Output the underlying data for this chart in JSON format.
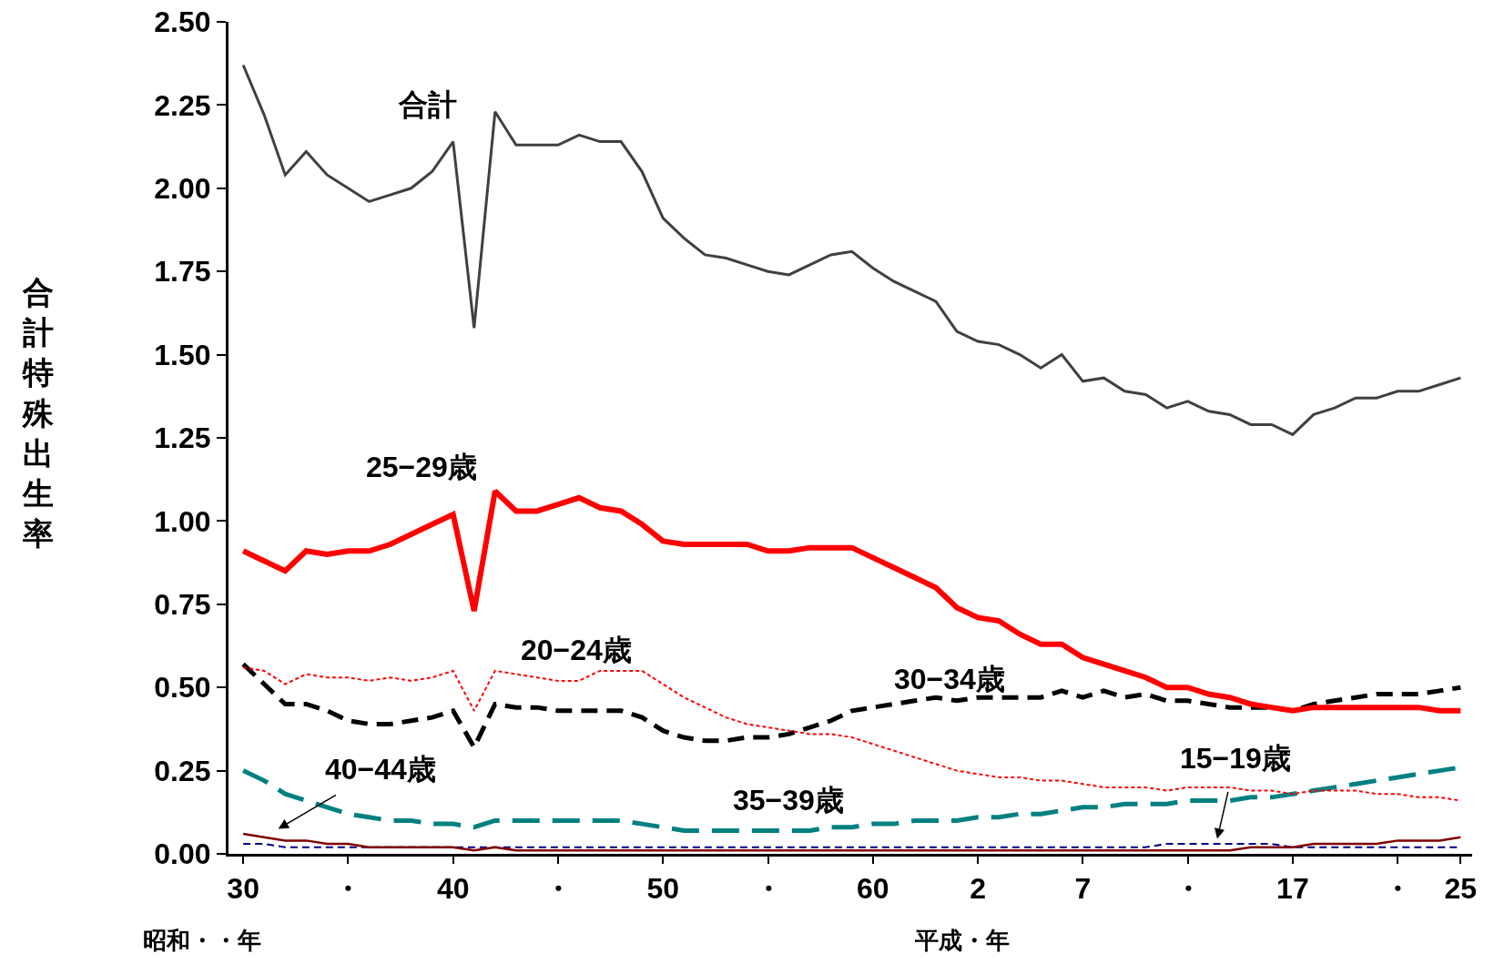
{
  "chart_data": {
    "type": "line",
    "ylabel": "合計特殊出生率",
    "legend": false,
    "grid": false,
    "categories": [
      "30",
      null,
      null,
      null,
      null,
      "・",
      null,
      null,
      null,
      null,
      "40",
      null,
      null,
      null,
      null,
      "・",
      null,
      null,
      null,
      null,
      "50",
      null,
      null,
      null,
      null,
      "・",
      null,
      null,
      null,
      null,
      "60",
      null,
      null,
      null,
      null,
      "2",
      null,
      null,
      null,
      null,
      "7",
      null,
      null,
      null,
      null,
      "・",
      null,
      null,
      null,
      null,
      "17",
      null,
      null,
      null,
      null,
      "・",
      null,
      null,
      "25"
    ],
    "ylim": [
      0,
      2.5
    ],
    "yticks": [
      {
        "value": 0,
        "label": "0.00"
      },
      {
        "value": 0.25,
        "label": "0.25"
      },
      {
        "value": 0.5,
        "label": "0.50"
      },
      {
        "value": 0.75,
        "label": "0.75"
      },
      {
        "value": 1,
        "label": "1.00"
      },
      {
        "value": 1.25,
        "label": "1.25"
      },
      {
        "value": 1.5,
        "label": "1.50"
      },
      {
        "value": 1.75,
        "label": "1.75"
      },
      {
        "value": 2,
        "label": "2.00"
      },
      {
        "value": 2.25,
        "label": "2.25"
      },
      {
        "value": 2.5,
        "label": "2.50"
      }
    ],
    "annotations": [
      "昭和・・年",
      "平成・年"
    ],
    "series": [
      {
        "name": "合計",
        "color": "#404040",
        "line_style": "solid",
        "values": [
          2.37,
          2.22,
          2.04,
          2.11,
          2.04,
          2.0,
          1.96,
          1.98,
          2.0,
          2.05,
          2.14,
          1.58,
          2.23,
          2.13,
          2.13,
          2.13,
          2.16,
          2.14,
          2.14,
          2.05,
          1.91,
          1.85,
          1.8,
          1.79,
          1.77,
          1.75,
          1.74,
          1.77,
          1.8,
          1.81,
          1.76,
          1.72,
          1.69,
          1.66,
          1.57,
          1.54,
          1.53,
          1.5,
          1.46,
          1.5,
          1.42,
          1.43,
          1.39,
          1.38,
          1.34,
          1.36,
          1.33,
          1.32,
          1.29,
          1.29,
          1.26,
          1.32,
          1.34,
          1.37,
          1.37,
          1.39,
          1.39,
          1.41,
          1.43
        ]
      },
      {
        "name": "25−29歳",
        "color": "#ff0000",
        "line_style": "solid",
        "values": [
          0.91,
          0.88,
          0.85,
          0.91,
          0.9,
          0.91,
          0.91,
          0.93,
          0.96,
          0.99,
          1.02,
          0.73,
          1.09,
          1.03,
          1.03,
          1.05,
          1.07,
          1.04,
          1.03,
          0.99,
          0.94,
          0.93,
          0.93,
          0.93,
          0.93,
          0.91,
          0.91,
          0.92,
          0.92,
          0.92,
          0.89,
          0.86,
          0.83,
          0.8,
          0.74,
          0.71,
          0.7,
          0.66,
          0.63,
          0.63,
          0.59,
          0.57,
          0.55,
          0.53,
          0.5,
          0.5,
          0.48,
          0.47,
          0.45,
          0.44,
          0.43,
          0.44,
          0.44,
          0.44,
          0.44,
          0.44,
          0.44,
          0.43,
          0.43
        ]
      },
      {
        "name": "20−24歳",
        "color": "#ff0000",
        "line_style": "dotted",
        "values": [
          0.56,
          0.55,
          0.51,
          0.54,
          0.53,
          0.53,
          0.52,
          0.53,
          0.52,
          0.53,
          0.55,
          0.43,
          0.55,
          0.54,
          0.53,
          0.52,
          0.52,
          0.55,
          0.55,
          0.55,
          0.51,
          0.47,
          0.44,
          0.41,
          0.39,
          0.38,
          0.37,
          0.36,
          0.36,
          0.35,
          0.33,
          0.31,
          0.29,
          0.27,
          0.25,
          0.24,
          0.23,
          0.23,
          0.22,
          0.22,
          0.21,
          0.2,
          0.2,
          0.2,
          0.19,
          0.2,
          0.2,
          0.2,
          0.19,
          0.19,
          0.18,
          0.19,
          0.19,
          0.19,
          0.18,
          0.18,
          0.17,
          0.17,
          0.16
        ]
      },
      {
        "name": "30−34歳",
        "color": "#000000",
        "line_style": "dashed",
        "values": [
          0.57,
          0.51,
          0.45,
          0.45,
          0.43,
          0.4,
          0.39,
          0.39,
          0.4,
          0.41,
          0.43,
          0.32,
          0.45,
          0.44,
          0.44,
          0.43,
          0.43,
          0.43,
          0.43,
          0.41,
          0.37,
          0.35,
          0.34,
          0.34,
          0.35,
          0.35,
          0.36,
          0.38,
          0.4,
          0.43,
          0.44,
          0.45,
          0.46,
          0.47,
          0.46,
          0.47,
          0.47,
          0.47,
          0.47,
          0.49,
          0.47,
          0.49,
          0.47,
          0.48,
          0.46,
          0.46,
          0.45,
          0.44,
          0.44,
          0.44,
          0.43,
          0.45,
          0.46,
          0.47,
          0.48,
          0.48,
          0.48,
          0.49,
          0.5
        ]
      },
      {
        "name": "35−39歳",
        "color": "#008080",
        "line_style": "dashed",
        "values": [
          0.25,
          0.22,
          0.18,
          0.16,
          0.14,
          0.12,
          0.11,
          0.1,
          0.1,
          0.09,
          0.09,
          0.08,
          0.1,
          0.1,
          0.1,
          0.1,
          0.1,
          0.1,
          0.1,
          0.09,
          0.08,
          0.07,
          0.07,
          0.07,
          0.07,
          0.07,
          0.07,
          0.07,
          0.08,
          0.08,
          0.09,
          0.09,
          0.1,
          0.1,
          0.1,
          0.11,
          0.11,
          0.12,
          0.12,
          0.13,
          0.14,
          0.14,
          0.15,
          0.15,
          0.15,
          0.16,
          0.16,
          0.16,
          0.17,
          0.17,
          0.18,
          0.19,
          0.2,
          0.21,
          0.22,
          0.23,
          0.24,
          0.25,
          0.26
        ]
      },
      {
        "name": "40−44歳",
        "color": "#800000",
        "line_style": "solid",
        "values": [
          0.06,
          0.05,
          0.04,
          0.04,
          0.03,
          0.03,
          0.02,
          0.02,
          0.02,
          0.02,
          0.02,
          0.01,
          0.02,
          0.01,
          0.01,
          0.01,
          0.01,
          0.01,
          0.01,
          0.01,
          0.01,
          0.01,
          0.01,
          0.01,
          0.01,
          0.01,
          0.01,
          0.01,
          0.01,
          0.01,
          0.01,
          0.01,
          0.01,
          0.01,
          0.01,
          0.01,
          0.01,
          0.01,
          0.01,
          0.01,
          0.01,
          0.01,
          0.01,
          0.01,
          0.01,
          0.01,
          0.01,
          0.01,
          0.02,
          0.02,
          0.02,
          0.03,
          0.03,
          0.03,
          0.03,
          0.04,
          0.04,
          0.04,
          0.05
        ]
      },
      {
        "name": "15−19歳",
        "color": "#000080",
        "line_style": "dashed",
        "values": [
          0.03,
          0.03,
          0.02,
          0.02,
          0.02,
          0.02,
          0.02,
          0.02,
          0.02,
          0.02,
          0.02,
          0.02,
          0.02,
          0.02,
          0.02,
          0.02,
          0.02,
          0.02,
          0.02,
          0.02,
          0.02,
          0.02,
          0.02,
          0.02,
          0.02,
          0.02,
          0.02,
          0.02,
          0.02,
          0.02,
          0.02,
          0.02,
          0.02,
          0.02,
          0.02,
          0.02,
          0.02,
          0.02,
          0.02,
          0.02,
          0.02,
          0.02,
          0.02,
          0.02,
          0.03,
          0.03,
          0.03,
          0.03,
          0.03,
          0.03,
          0.02,
          0.02,
          0.02,
          0.02,
          0.02,
          0.02,
          0.02,
          0.02,
          0.02
        ]
      }
    ]
  }
}
